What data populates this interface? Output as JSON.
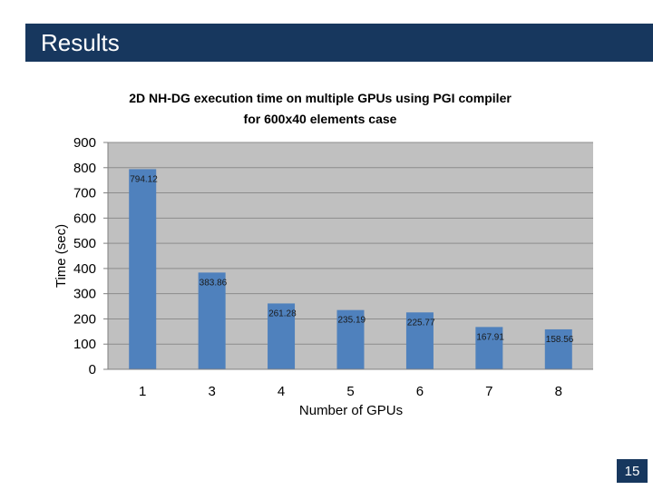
{
  "slide": {
    "title": "Results",
    "page_number": "15",
    "colors": {
      "title_bar": "#17375e",
      "bar": "#4f81bd",
      "plot_bg": "#c0c0c0"
    }
  },
  "chart_data": {
    "type": "bar",
    "title": "2D NH-DG execution time on multiple GPUs using PGI compiler",
    "subtitle": "for 600x40 elements case",
    "xlabel": "Number of GPUs",
    "ylabel": "Time (sec)",
    "categories": [
      "1",
      "3",
      "4",
      "5",
      "6",
      "7",
      "8"
    ],
    "values": [
      794.12,
      383.86,
      261.28,
      235.19,
      225.77,
      167.91,
      158.56
    ],
    "data_labels": [
      "794.12",
      "383.86",
      "261.28",
      "235.19",
      "225.77",
      "167.91",
      "158.56"
    ],
    "yticks": [
      "0",
      "100",
      "200",
      "300",
      "400",
      "500",
      "600",
      "700",
      "800",
      "900"
    ],
    "ylim": [
      0,
      900
    ],
    "grid": true,
    "legend": "none"
  }
}
